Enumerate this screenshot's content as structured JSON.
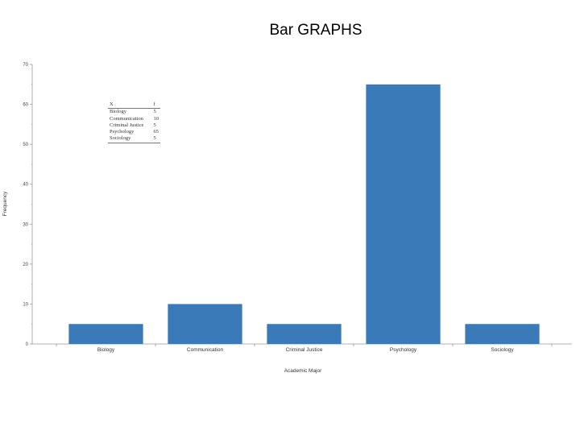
{
  "slide": {
    "title": "Bar GRAPHS"
  },
  "chart_data": {
    "type": "bar",
    "title": "",
    "xlabel": "Academic Major",
    "ylabel": "Frequency",
    "categories": [
      "Biology",
      "Communication",
      "Criminal Justice",
      "Psychology",
      "Sociology"
    ],
    "values": [
      5,
      10,
      5,
      65,
      5
    ],
    "ylim": [
      0,
      70
    ],
    "yticks": [
      0,
      10,
      20,
      30,
      40,
      50,
      60,
      70
    ],
    "bar_color": "#3a7ab8",
    "grid": false,
    "legend": "none"
  },
  "table": {
    "headers": [
      "X",
      "f"
    ],
    "rows": [
      [
        "Biology",
        "5"
      ],
      [
        "Communication",
        "10"
      ],
      [
        "Criminal Justice",
        "5"
      ],
      [
        "Psychology",
        "65"
      ],
      [
        "Sociology",
        "5"
      ]
    ]
  }
}
